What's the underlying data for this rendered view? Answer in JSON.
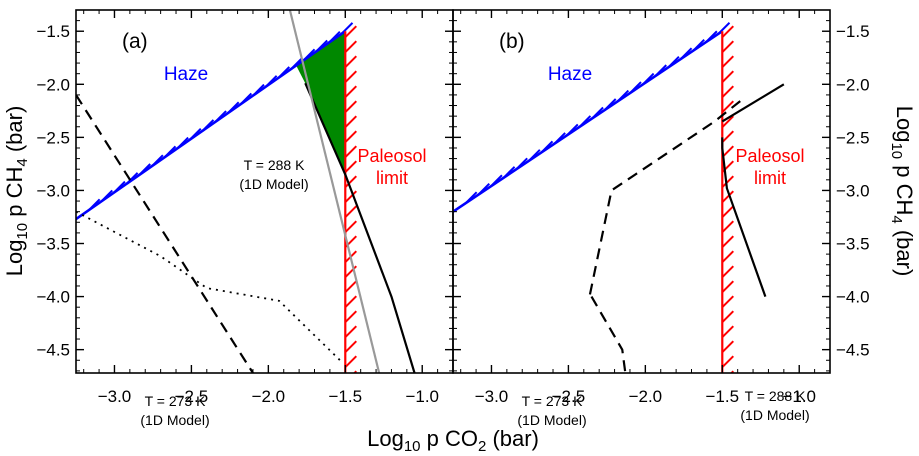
{
  "figure": {
    "xlabel_main": "Log",
    "xlabel_sub": "10",
    "xlabel_rest": " p CO",
    "xlabel_sub2": "2",
    "xlabel_unit": "  (bar)",
    "ylabel_main": "Log",
    "ylabel_sub": "10",
    "ylabel_rest": " p CH",
    "ylabel_sub2": "4",
    "ylabel_unit": "  (bar)"
  },
  "colors": {
    "haze": "#0000ff",
    "paleosol": "#ff0000",
    "fill": "#008800",
    "gray": "#999999",
    "black": "#000000"
  },
  "chart_data": [
    {
      "type": "line",
      "panel_label": "(a)",
      "xlim": [
        -3.25,
        -0.8
      ],
      "ylim": [
        -4.72,
        -1.3
      ],
      "x_ticks": [
        -3.0,
        -2.5,
        -2.0,
        -1.5,
        -1.0
      ],
      "x_tick_labels": [
        "−3.0",
        "−2.5",
        "−2.0",
        "−1.5",
        "−1.0"
      ],
      "y_ticks": [
        -1.5,
        -2.0,
        -2.5,
        -3.0,
        -3.5,
        -4.0,
        -4.5
      ],
      "y_tick_labels": [
        "−1.5",
        "−2.0",
        "−2.5",
        "−3.0",
        "−3.5",
        "−4.0",
        "−4.5"
      ],
      "annotations": {
        "haze": "Haze",
        "paleosol": [
          "Paleosol",
          "limit"
        ],
        "t288": [
          "T = 288 K",
          "(1D Model)"
        ],
        "t273": [
          "T = 273 K",
          "(1D Model)"
        ]
      },
      "series": [
        {
          "style": "haze_boundary",
          "x": [
            -3.25,
            -1.5
          ],
          "y": [
            -3.27,
            -1.5
          ]
        },
        {
          "style": "paleosol_limit",
          "x": [
            -1.5,
            -1.5
          ],
          "y": [
            -1.5,
            -4.72
          ]
        },
        {
          "style": "solid_black",
          "x": [
            -1.76,
            -1.5,
            -1.2,
            -1.05
          ],
          "y": [
            -1.99,
            -2.85,
            -4.0,
            -4.72
          ]
        },
        {
          "style": "solid_gray",
          "x": [
            -1.86,
            -1.28
          ],
          "y": [
            -1.3,
            -4.72
          ]
        },
        {
          "style": "dashed_black",
          "x": [
            -3.25,
            -2.1
          ],
          "y": [
            -2.1,
            -4.72
          ]
        },
        {
          "style": "dotted_black",
          "x": [
            -3.25,
            -2.7,
            -2.4,
            -1.93,
            -1.52
          ],
          "y": [
            -3.2,
            -3.62,
            -3.92,
            -4.04,
            -4.62
          ]
        }
      ],
      "filled_region": {
        "x": [
          -1.82,
          -1.5,
          -1.5,
          -1.76
        ],
        "y": [
          -1.82,
          -1.5,
          -2.85,
          -1.99
        ]
      }
    },
    {
      "type": "line",
      "panel_label": "(b)",
      "xlim": [
        -3.25,
        -0.8
      ],
      "ylim": [
        -4.72,
        -1.3
      ],
      "x_ticks": [
        -3.0,
        -2.5,
        -2.0,
        -1.5,
        -1.0
      ],
      "x_tick_labels": [
        "−3.0",
        "−2.5",
        "−2.0",
        "−1.5",
        "−1.0"
      ],
      "y_ticks": [
        -1.5,
        -2.0,
        -2.5,
        -3.0,
        -3.5,
        -4.0,
        -4.5
      ],
      "y_tick_labels": [
        "−1.5",
        "−2.0",
        "−2.5",
        "−3.0",
        "−3.5",
        "−4.0",
        "−4.5"
      ],
      "annotations": {
        "haze": "Haze",
        "paleosol": [
          "Paleosol",
          "limit"
        ],
        "t288": [
          "T = 288 K",
          "(1D Model)"
        ],
        "t273": [
          "T = 273 K",
          "(1D Model)"
        ]
      },
      "series": [
        {
          "style": "haze_boundary",
          "x": [
            -3.25,
            -1.5
          ],
          "y": [
            -3.2,
            -1.5
          ]
        },
        {
          "style": "paleosol_limit",
          "x": [
            -1.5,
            -1.5
          ],
          "y": [
            -1.5,
            -4.72
          ]
        },
        {
          "style": "solid_black",
          "x": [
            -1.5,
            -1.1
          ],
          "y": [
            -2.35,
            -2.0
          ]
        },
        {
          "style": "solid_black",
          "x": [
            -1.5,
            -1.5,
            -1.47,
            -1.22
          ],
          "y": [
            -2.5,
            -2.6,
            -2.98,
            -4.0
          ]
        },
        {
          "style": "dashed_black",
          "x": [
            -2.35,
            -2.15,
            -2.13
          ],
          "y": [
            -4.0,
            -4.5,
            -4.72
          ]
        },
        {
          "style": "dashed_black",
          "x": [
            -2.36,
            -2.22,
            -1.55,
            -1.35
          ],
          "y": [
            -3.98,
            -3.0,
            -2.35,
            -2.12
          ]
        }
      ]
    }
  ]
}
